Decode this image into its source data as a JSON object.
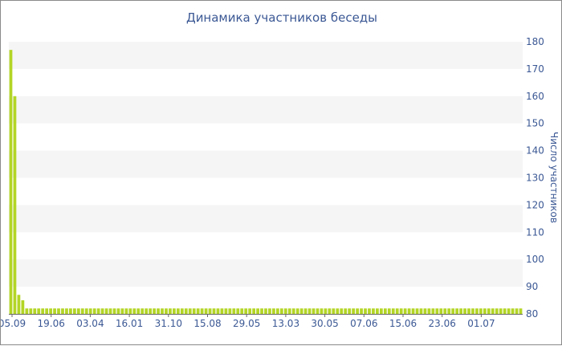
{
  "chart_data": {
    "type": "bar",
    "title": "Динамика участников беседы",
    "xlabel": "",
    "ylabel": "Число участников",
    "ylim": [
      80,
      180
    ],
    "yticks": [
      80,
      90,
      100,
      110,
      120,
      130,
      140,
      150,
      160,
      170,
      180
    ],
    "xtick_labels": [
      "05.09",
      "19.06",
      "03.04",
      "16.01",
      "31.10",
      "15.08",
      "29.05",
      "13.03",
      "30.05",
      "07.06",
      "15.06",
      "23.06",
      "01.07"
    ],
    "grid": "horizontal alternating bands",
    "bar_color": "#b3d526",
    "series": [
      {
        "values": [
          177,
          160,
          87,
          85,
          82,
          82,
          82,
          82,
          82,
          82,
          82,
          82,
          82,
          82,
          82,
          82,
          82,
          82,
          82,
          82,
          82,
          82,
          82,
          82,
          82,
          82,
          82,
          82,
          82,
          82,
          82,
          82,
          82,
          82,
          82,
          82,
          82,
          82,
          82,
          82,
          82,
          82,
          82,
          82,
          82,
          82,
          82,
          82,
          82,
          82,
          82,
          82,
          82,
          82,
          82,
          82,
          82,
          82,
          82,
          82,
          82,
          82,
          82,
          82,
          82,
          82,
          82,
          82,
          82,
          82,
          82,
          82,
          82,
          82,
          82,
          82,
          82,
          82,
          82,
          82,
          82,
          82,
          82,
          82,
          82,
          82,
          82,
          82,
          82,
          82,
          82,
          82,
          82,
          82,
          82,
          82,
          82,
          82,
          82,
          82,
          82,
          82,
          82,
          82,
          82,
          82,
          82,
          82,
          82,
          82,
          82,
          82,
          82,
          82,
          82,
          82,
          82,
          82,
          82,
          82,
          82,
          82,
          82,
          82,
          82,
          82,
          82,
          82,
          82
        ]
      }
    ]
  }
}
